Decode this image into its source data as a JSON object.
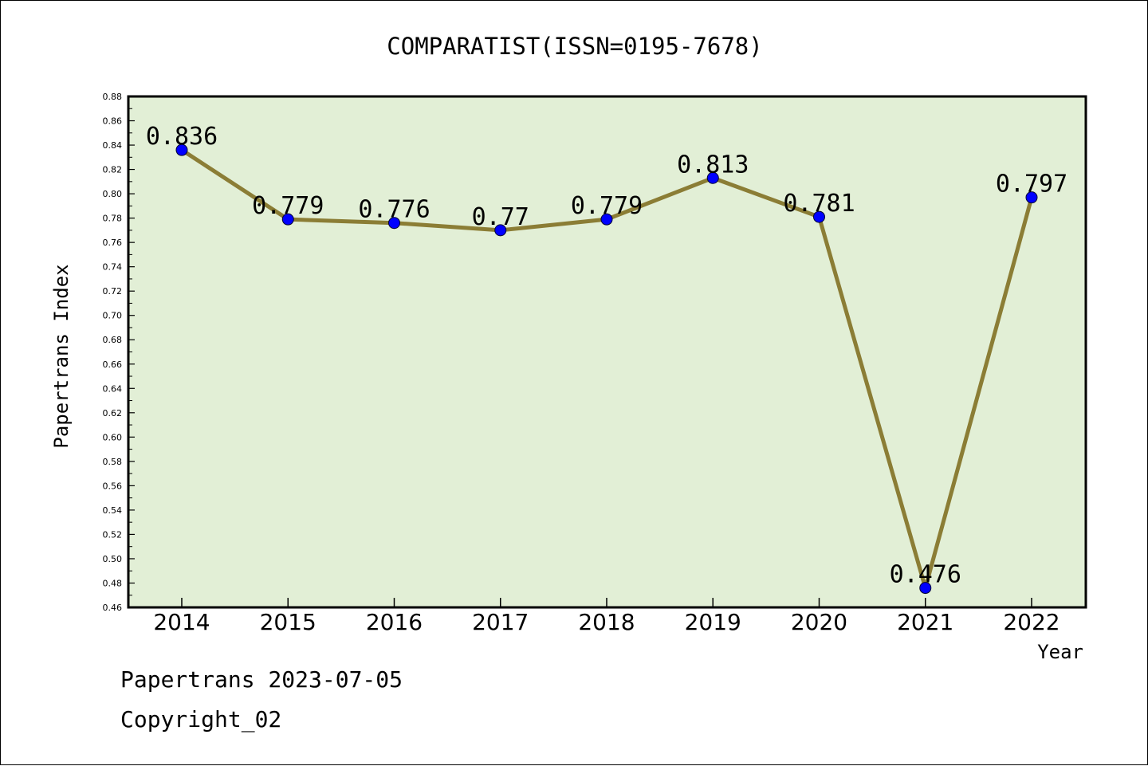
{
  "chart_data": {
    "type": "line",
    "title": "COMPARATIST(ISSN=0195-7678)",
    "xlabel": "Year",
    "ylabel": "Papertrans Index",
    "categories": [
      "2014",
      "2015",
      "2016",
      "2017",
      "2018",
      "2019",
      "2020",
      "2021",
      "2022"
    ],
    "series": [
      {
        "values": [
          0.836,
          0.779,
          0.776,
          0.77,
          0.779,
          0.813,
          0.781,
          0.476,
          0.797
        ],
        "labels": [
          "0.836",
          "0.779",
          "0.776",
          "0.77",
          "0.779",
          "0.813",
          "0.781",
          "0.476",
          "0.797"
        ]
      }
    ],
    "ylim": [
      0.46,
      0.88
    ],
    "yticks": [
      "0.46",
      "0.48",
      "0.50",
      "0.52",
      "0.54",
      "0.56",
      "0.58",
      "0.60",
      "0.62",
      "0.64",
      "0.66",
      "0.68",
      "0.70",
      "0.72",
      "0.74",
      "0.76",
      "0.78",
      "0.80",
      "0.82",
      "0.84",
      "0.86",
      "0.88"
    ],
    "grid": false,
    "colors": {
      "plot_background": "#e2efd6",
      "line": "#8b7d35",
      "marker": "#0000ff"
    }
  },
  "footer": {
    "date_line": "Papertrans 2023-07-05",
    "copyright": "Copyright_02"
  }
}
